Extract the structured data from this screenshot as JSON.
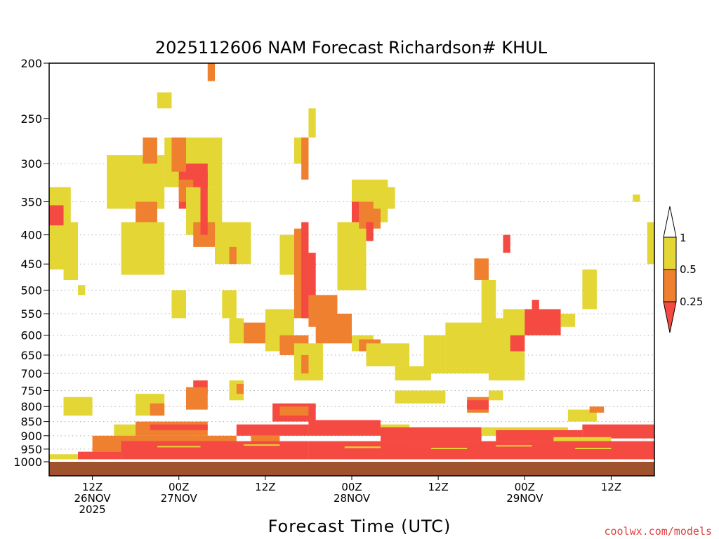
{
  "chart_data": {
    "type": "heatmap",
    "title": "2025112606 NAM Forecast Richardson# KHUL",
    "xlabel": "Forecast Time (UTC)",
    "ylabel": "",
    "credit": "coolwx.com/models",
    "y_scale": "log",
    "y_inverted": true,
    "ylim": [
      1000,
      200
    ],
    "y_ticks": [
      200,
      250,
      300,
      350,
      400,
      450,
      500,
      550,
      600,
      650,
      700,
      750,
      800,
      850,
      900,
      950,
      1000
    ],
    "y_gridlines": [
      300,
      350,
      400,
      450,
      500,
      550,
      600,
      650,
      700,
      750,
      800,
      850,
      900,
      950
    ],
    "xlim": [
      "2025-11-26 06Z",
      "2025-11-29 18Z"
    ],
    "x_ticks": [
      {
        "time": "2025-11-26 12Z",
        "lines": [
          "12Z",
          "26NOV",
          "2025"
        ]
      },
      {
        "time": "2025-11-27 00Z",
        "lines": [
          "00Z",
          "27NOV"
        ]
      },
      {
        "time": "2025-11-27 12Z",
        "lines": [
          "12Z"
        ]
      },
      {
        "time": "2025-11-28 00Z",
        "lines": [
          "00Z",
          "28NOV"
        ]
      },
      {
        "time": "2025-11-28 12Z",
        "lines": [
          "12Z"
        ]
      },
      {
        "time": "2025-11-29 00Z",
        "lines": [
          "00Z",
          "29NOV"
        ]
      },
      {
        "time": "2025-11-29 12Z",
        "lines": [
          "12Z"
        ]
      }
    ],
    "legend": {
      "placement": "right",
      "levels": [
        "1",
        "0.5",
        "0.25"
      ],
      "colors": {
        "gt_1": "#ffffff",
        "b_05_1": "#e3d635",
        "b_025_05": "#ee8030",
        "lt_025": "#f44a41"
      }
    },
    "ground_color": "#a0522d",
    "ground_top_hpa": 1000,
    "regions": [
      {
        "c": "y",
        "t": [
          "2025-11-26 06Z",
          "2025-11-26 09Z"
        ],
        "p": [
          330,
          460
        ]
      },
      {
        "c": "r",
        "t": [
          "2025-11-26 06Z",
          "2025-11-26 08Z"
        ],
        "p": [
          355,
          385
        ]
      },
      {
        "c": "y",
        "t": [
          "2025-11-26 08Z",
          "2025-11-26 10Z"
        ],
        "p": [
          380,
          480
        ]
      },
      {
        "c": "y",
        "t": [
          "2025-11-26 10Z",
          "2025-11-26 11Z"
        ],
        "p": [
          490,
          510
        ]
      },
      {
        "c": "y",
        "t": [
          "2025-11-26 14Z",
          "2025-11-26 22Z"
        ],
        "p": [
          290,
          360
        ]
      },
      {
        "c": "o",
        "t": [
          "2025-11-26 18Z",
          "2025-11-26 21Z"
        ],
        "p": [
          350,
          420
        ]
      },
      {
        "c": "y",
        "t": [
          "2025-11-26 16Z",
          "2025-11-26 22Z"
        ],
        "p": [
          380,
          470
        ]
      },
      {
        "c": "o",
        "t": [
          "2025-11-26 19Z",
          "2025-11-26 21Z"
        ],
        "p": [
          270,
          300
        ]
      },
      {
        "c": "y",
        "t": [
          "2025-11-26 21Z",
          "2025-11-26 23Z"
        ],
        "p": [
          225,
          240
        ]
      },
      {
        "c": "y",
        "t": [
          "2025-11-26 22Z",
          "2025-11-27 06Z"
        ],
        "p": [
          270,
          330
        ]
      },
      {
        "c": "r",
        "t": [
          "2025-11-27 00Z",
          "2025-11-27 04Z"
        ],
        "p": [
          300,
          360
        ]
      },
      {
        "c": "o",
        "t": [
          "2025-11-26 23Z",
          "2025-11-27 01Z"
        ],
        "p": [
          270,
          310
        ]
      },
      {
        "c": "o",
        "t": [
          "2025-11-27 00Z",
          "2025-11-27 02Z"
        ],
        "p": [
          320,
          350
        ]
      },
      {
        "c": "y",
        "t": [
          "2025-11-27 01Z",
          "2025-11-27 06Z"
        ],
        "p": [
          330,
          400
        ]
      },
      {
        "c": "o",
        "t": [
          "2025-11-27 02Z",
          "2025-11-27 05Z"
        ],
        "p": [
          380,
          420
        ]
      },
      {
        "c": "r",
        "t": [
          "2025-11-27 03Z",
          "2025-11-27 04Z"
        ],
        "p": [
          310,
          400
        ]
      },
      {
        "c": "o",
        "t": [
          "2025-11-27 04Z",
          "2025-11-27 05Z"
        ],
        "p": [
          200,
          215
        ]
      },
      {
        "c": "y",
        "t": [
          "2025-11-27 05Z",
          "2025-11-27 10Z"
        ],
        "p": [
          380,
          450
        ]
      },
      {
        "c": "o",
        "t": [
          "2025-11-27 07Z",
          "2025-11-27 08Z"
        ],
        "p": [
          420,
          450
        ]
      },
      {
        "c": "y",
        "t": [
          "2025-11-26 23Z",
          "2025-11-27 01Z"
        ],
        "p": [
          500,
          560
        ]
      },
      {
        "c": "y",
        "t": [
          "2025-11-27 06Z",
          "2025-11-27 08Z"
        ],
        "p": [
          500,
          560
        ]
      },
      {
        "c": "y",
        "t": [
          "2025-11-27 07Z",
          "2025-11-27 09Z"
        ],
        "p": [
          560,
          620
        ]
      },
      {
        "c": "o",
        "t": [
          "2025-11-27 09Z",
          "2025-11-27 14Z"
        ],
        "p": [
          570,
          620
        ]
      },
      {
        "c": "y",
        "t": [
          "2025-11-27 12Z",
          "2025-11-27 16Z"
        ],
        "p": [
          540,
          640
        ]
      },
      {
        "c": "o",
        "t": [
          "2025-11-27 14Z",
          "2025-11-27 18Z"
        ],
        "p": [
          600,
          650
        ]
      },
      {
        "c": "y",
        "t": [
          "2025-11-27 16Z",
          "2025-11-27 20Z"
        ],
        "p": [
          620,
          720
        ]
      },
      {
        "c": "o",
        "t": [
          "2025-11-27 17Z",
          "2025-11-27 18Z"
        ],
        "p": [
          650,
          700
        ]
      },
      {
        "c": "y",
        "t": [
          "2025-11-27 14Z",
          "2025-11-27 16Z"
        ],
        "p": [
          400,
          470
        ]
      },
      {
        "c": "o",
        "t": [
          "2025-11-27 16Z",
          "2025-11-27 18Z"
        ],
        "p": [
          390,
          560
        ]
      },
      {
        "c": "y",
        "t": [
          "2025-11-27 16Z",
          "2025-11-27 18Z"
        ],
        "p": [
          270,
          300
        ]
      },
      {
        "c": "o",
        "t": [
          "2025-11-27 17Z",
          "2025-11-27 18Z"
        ],
        "p": [
          270,
          320
        ]
      },
      {
        "c": "r",
        "t": [
          "2025-11-27 17Z",
          "2025-11-27 18Z"
        ],
        "p": [
          380,
          560
        ]
      },
      {
        "c": "r",
        "t": [
          "2025-11-27 18Z",
          "2025-11-27 19Z"
        ],
        "p": [
          430,
          530
        ]
      },
      {
        "c": "y",
        "t": [
          "2025-11-27 18Z",
          "2025-11-27 19Z"
        ],
        "p": [
          240,
          270
        ]
      },
      {
        "c": "o",
        "t": [
          "2025-11-27 18Z",
          "2025-11-27 22Z"
        ],
        "p": [
          510,
          580
        ]
      },
      {
        "c": "o",
        "t": [
          "2025-11-27 19Z",
          "2025-11-28 00Z"
        ],
        "p": [
          550,
          620
        ]
      },
      {
        "c": "y",
        "t": [
          "2025-11-27 22Z",
          "2025-11-28 02Z"
        ],
        "p": [
          380,
          500
        ]
      },
      {
        "c": "y",
        "t": [
          "2025-11-28 00Z",
          "2025-11-28 05Z"
        ],
        "p": [
          320,
          380
        ]
      },
      {
        "c": "o",
        "t": [
          "2025-11-28 01Z",
          "2025-11-28 04Z"
        ],
        "p": [
          350,
          390
        ]
      },
      {
        "c": "r",
        "t": [
          "2025-11-28 00Z",
          "2025-11-28 01Z"
        ],
        "p": [
          350,
          380
        ]
      },
      {
        "c": "r",
        "t": [
          "2025-11-28 02Z",
          "2025-11-28 03Z"
        ],
        "p": [
          380,
          410
        ]
      },
      {
        "c": "y",
        "t": [
          "2025-11-28 03Z",
          "2025-11-28 06Z"
        ],
        "p": [
          330,
          360
        ]
      },
      {
        "c": "y",
        "t": [
          "2025-11-28 00Z",
          "2025-11-28 03Z"
        ],
        "p": [
          600,
          640
        ]
      },
      {
        "c": "o",
        "t": [
          "2025-11-28 01Z",
          "2025-11-28 04Z"
        ],
        "p": [
          610,
          640
        ]
      },
      {
        "c": "y",
        "t": [
          "2025-11-28 02Z",
          "2025-11-28 08Z"
        ],
        "p": [
          620,
          680
        ]
      },
      {
        "c": "y",
        "t": [
          "2025-11-28 06Z",
          "2025-11-28 11Z"
        ],
        "p": [
          680,
          720
        ]
      },
      {
        "c": "y",
        "t": [
          "2025-11-28 10Z",
          "2025-11-28 13Z"
        ],
        "p": [
          600,
          700
        ]
      },
      {
        "c": "o",
        "t": [
          "2025-11-28 14Z",
          "2025-11-28 18Z"
        ],
        "p": [
          600,
          640
        ]
      },
      {
        "c": "y",
        "t": [
          "2025-11-28 13Z",
          "2025-11-28 21Z"
        ],
        "p": [
          570,
          700
        ]
      },
      {
        "c": "o",
        "t": [
          "2025-11-28 17Z",
          "2025-11-28 19Z"
        ],
        "p": [
          440,
          480
        ]
      },
      {
        "c": "y",
        "t": [
          "2025-11-28 18Z",
          "2025-11-28 20Z"
        ],
        "p": [
          480,
          580
        ]
      },
      {
        "c": "y",
        "t": [
          "2025-11-28 19Z",
          "2025-11-29 00Z"
        ],
        "p": [
          560,
          720
        ]
      },
      {
        "c": "y",
        "t": [
          "2025-11-28 21Z",
          "2025-11-29 00Z"
        ],
        "p": [
          540,
          600
        ]
      },
      {
        "c": "r",
        "t": [
          "2025-11-28 21Z",
          "2025-11-28 22Z"
        ],
        "p": [
          400,
          430
        ]
      },
      {
        "c": "r",
        "t": [
          "2025-11-28 22Z",
          "2025-11-29 00Z"
        ],
        "p": [
          600,
          640
        ]
      },
      {
        "c": "r",
        "t": [
          "2025-11-29 00Z",
          "2025-11-29 05Z"
        ],
        "p": [
          540,
          600
        ]
      },
      {
        "c": "r",
        "t": [
          "2025-11-29 01Z",
          "2025-11-29 02Z"
        ],
        "p": [
          520,
          560
        ]
      },
      {
        "c": "y",
        "t": [
          "2025-11-29 05Z",
          "2025-11-29 07Z"
        ],
        "p": [
          550,
          580
        ]
      },
      {
        "c": "y",
        "t": [
          "2025-11-29 08Z",
          "2025-11-29 10Z"
        ],
        "p": [
          460,
          540
        ]
      },
      {
        "c": "y",
        "t": [
          "2025-11-29 15Z",
          "2025-11-29 16Z"
        ],
        "p": [
          340,
          350
        ]
      },
      {
        "c": "y",
        "t": [
          "2025-11-29 17Z",
          "2025-11-29 18Z"
        ],
        "p": [
          380,
          450
        ]
      },
      {
        "c": "y",
        "t": [
          "2025-11-26 08Z",
          "2025-11-26 12Z"
        ],
        "p": [
          770,
          830
        ]
      },
      {
        "c": "y",
        "t": [
          "2025-11-26 18Z",
          "2025-11-26 22Z"
        ],
        "p": [
          760,
          830
        ]
      },
      {
        "c": "o",
        "t": [
          "2025-11-26 20Z",
          "2025-11-26 22Z"
        ],
        "p": [
          790,
          830
        ]
      },
      {
        "c": "r",
        "t": [
          "2025-11-27 02Z",
          "2025-11-27 04Z"
        ],
        "p": [
          720,
          760
        ]
      },
      {
        "c": "o",
        "t": [
          "2025-11-27 01Z",
          "2025-11-27 04Z"
        ],
        "p": [
          740,
          810
        ]
      },
      {
        "c": "y",
        "t": [
          "2025-11-27 07Z",
          "2025-11-27 09Z"
        ],
        "p": [
          720,
          780
        ]
      },
      {
        "c": "o",
        "t": [
          "2025-11-27 08Z",
          "2025-11-27 09Z"
        ],
        "p": [
          730,
          760
        ]
      },
      {
        "c": "r",
        "t": [
          "2025-11-27 13Z",
          "2025-11-27 19Z"
        ],
        "p": [
          790,
          850
        ]
      },
      {
        "c": "o",
        "t": [
          "2025-11-27 14Z",
          "2025-11-27 18Z"
        ],
        "p": [
          800,
          830
        ]
      },
      {
        "c": "y",
        "t": [
          "2025-11-28 06Z",
          "2025-11-28 13Z"
        ],
        "p": [
          750,
          790
        ]
      },
      {
        "c": "o",
        "t": [
          "2025-11-28 16Z",
          "2025-11-28 19Z"
        ],
        "p": [
          770,
          820
        ]
      },
      {
        "c": "r",
        "t": [
          "2025-11-28 16Z",
          "2025-11-28 19Z"
        ],
        "p": [
          780,
          810
        ]
      },
      {
        "c": "y",
        "t": [
          "2025-11-28 19Z",
          "2025-11-28 21Z"
        ],
        "p": [
          750,
          780
        ]
      },
      {
        "c": "y",
        "t": [
          "2025-11-29 06Z",
          "2025-11-29 10Z"
        ],
        "p": [
          810,
          850
        ]
      },
      {
        "c": "o",
        "t": [
          "2025-11-29 09Z",
          "2025-11-29 11Z"
        ],
        "p": [
          800,
          820
        ]
      },
      {
        "c": "y",
        "t": [
          "2025-11-26 15Z",
          "2025-11-27 02Z"
        ],
        "p": [
          860,
          930
        ]
      },
      {
        "c": "o",
        "t": [
          "2025-11-26 18Z",
          "2025-11-27 04Z"
        ],
        "p": [
          850,
          900
        ]
      },
      {
        "c": "r",
        "t": [
          "2025-11-26 20Z",
          "2025-11-27 04Z"
        ],
        "p": [
          860,
          880
        ]
      },
      {
        "c": "o",
        "t": [
          "2025-11-26 12Z",
          "2025-11-27 08Z"
        ],
        "p": [
          900,
          960
        ]
      },
      {
        "c": "r",
        "t": [
          "2025-11-27 08Z",
          "2025-11-27 18Z"
        ],
        "p": [
          860,
          900
        ]
      },
      {
        "c": "o",
        "t": [
          "2025-11-27 10Z",
          "2025-11-27 14Z"
        ],
        "p": [
          900,
          930
        ]
      },
      {
        "c": "r",
        "t": [
          "2025-11-27 18Z",
          "2025-11-28 04Z"
        ],
        "p": [
          845,
          900
        ]
      },
      {
        "c": "y",
        "t": [
          "2025-11-28 04Z",
          "2025-11-28 08Z"
        ],
        "p": [
          860,
          890
        ]
      },
      {
        "c": "r",
        "t": [
          "2025-11-28 04Z",
          "2025-11-28 18Z"
        ],
        "p": [
          870,
          920
        ]
      },
      {
        "c": "o",
        "t": [
          "2025-11-28 08Z",
          "2025-11-28 12Z"
        ],
        "p": [
          920,
          950
        ]
      },
      {
        "c": "y",
        "t": [
          "2025-11-28 18Z",
          "2025-11-29 06Z"
        ],
        "p": [
          870,
          900
        ]
      },
      {
        "c": "r",
        "t": [
          "2025-11-28 20Z",
          "2025-11-29 08Z"
        ],
        "p": [
          880,
          920
        ]
      },
      {
        "c": "r",
        "t": [
          "2025-11-29 08Z",
          "2025-11-29 18Z"
        ],
        "p": [
          860,
          910
        ]
      },
      {
        "c": "y",
        "t": [
          "2025-11-29 04Z",
          "2025-11-29 12Z"
        ],
        "p": [
          905,
          930
        ]
      },
      {
        "c": "r",
        "t": [
          "2025-11-26 16Z",
          "2025-11-27 18Z"
        ],
        "p": [
          920,
          990
        ]
      },
      {
        "c": "r",
        "t": [
          "2025-11-27 18Z",
          "2025-11-29 18Z"
        ],
        "p": [
          920,
          990
        ]
      },
      {
        "c": "r",
        "t": [
          "2025-11-26 10Z",
          "2025-11-26 16Z"
        ],
        "p": [
          960,
          990
        ]
      },
      {
        "c": "y",
        "t": [
          "2025-11-26 06Z",
          "2025-11-26 10Z"
        ],
        "p": [
          970,
          990
        ]
      },
      {
        "c": "y",
        "t": [
          "2025-11-26 21Z",
          "2025-11-27 03Z"
        ],
        "p": [
          938,
          943
        ]
      },
      {
        "c": "y",
        "t": [
          "2025-11-27 09Z",
          "2025-11-27 14Z"
        ],
        "p": [
          932,
          937
        ]
      },
      {
        "c": "y",
        "t": [
          "2025-11-27 23Z",
          "2025-11-28 04Z"
        ],
        "p": [
          940,
          946
        ]
      },
      {
        "c": "y",
        "t": [
          "2025-11-28 11Z",
          "2025-11-28 16Z"
        ],
        "p": [
          945,
          950
        ]
      },
      {
        "c": "y",
        "t": [
          "2025-11-28 20Z",
          "2025-11-29 01Z"
        ],
        "p": [
          935,
          940
        ]
      },
      {
        "c": "y",
        "t": [
          "2025-11-29 07Z",
          "2025-11-29 12Z"
        ],
        "p": [
          945,
          950
        ]
      }
    ]
  }
}
